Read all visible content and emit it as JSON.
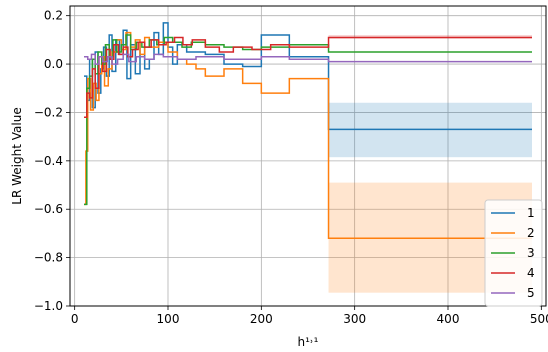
{
  "chart_data": {
    "type": "line",
    "title": "",
    "xlabel": "h¹˒¹",
    "ylabel": "LR Weight Value",
    "xlim": [
      -5,
      505
    ],
    "ylim": [
      -1.0,
      0.24
    ],
    "xticks": [
      0,
      100,
      200,
      300,
      400,
      500
    ],
    "xtick_labels": [
      "0",
      "100",
      "200",
      "300",
      "400",
      "500"
    ],
    "yticks": [
      -1.0,
      -0.8,
      -0.6,
      -0.4,
      -0.2,
      0.0,
      0.2
    ],
    "ytick_labels": [
      "−1.0",
      "−0.8",
      "−0.6",
      "−0.4",
      "−0.2",
      "0.0",
      "0.2"
    ],
    "grid": true,
    "legend_position": "lower-right",
    "series": [
      {
        "name": "1",
        "color": "#1f77b4",
        "x": [
          10,
          13,
          16,
          19,
          22,
          25,
          28,
          31,
          34,
          37,
          40,
          44,
          48,
          52,
          56,
          60,
          65,
          70,
          75,
          80,
          85,
          90,
          95,
          100,
          105,
          110,
          120,
          140,
          160,
          180,
          200,
          230,
          272,
          490
        ],
        "y": [
          -0.05,
          -0.15,
          0.02,
          -0.18,
          0.05,
          -0.12,
          -0.02,
          0.07,
          -0.05,
          0.12,
          -0.03,
          0.1,
          0.04,
          0.14,
          -0.06,
          0.08,
          -0.04,
          0.09,
          -0.02,
          0.02,
          0.13,
          0.04,
          0.17,
          0.07,
          0.0,
          0.08,
          0.05,
          0.04,
          0.0,
          -0.01,
          0.12,
          0.03,
          -0.27,
          -0.27
        ],
        "band": {
          "x_start": 272,
          "x_end": 490,
          "lower": -0.385,
          "upper": -0.16
        }
      },
      {
        "name": "2",
        "color": "#ff7f0e",
        "x": [
          10,
          12,
          14,
          17,
          20,
          23,
          26,
          29,
          32,
          36,
          40,
          45,
          50,
          55,
          60,
          65,
          70,
          75,
          80,
          90,
          100,
          110,
          120,
          130,
          140,
          160,
          180,
          200,
          230,
          272,
          490
        ],
        "y": [
          -0.58,
          -0.36,
          -0.06,
          -0.19,
          -0.08,
          -0.15,
          -0.04,
          0.03,
          -0.09,
          -0.02,
          0.05,
          0.1,
          0.06,
          0.13,
          0.07,
          0.1,
          0.04,
          0.11,
          0.07,
          0.09,
          0.05,
          0.02,
          0.0,
          -0.02,
          -0.05,
          -0.02,
          -0.08,
          -0.12,
          -0.06,
          -0.72,
          -0.72
        ],
        "band": {
          "x_start": 272,
          "x_end": 490,
          "lower": -0.945,
          "upper": -0.49
        }
      },
      {
        "name": "3",
        "color": "#2ca02c",
        "x": [
          10,
          13,
          16,
          19,
          22,
          25,
          29,
          33,
          37,
          41,
          45,
          50,
          55,
          60,
          66,
          72,
          80,
          88,
          96,
          105,
          115,
          125,
          140,
          160,
          180,
          200,
          230,
          272,
          490
        ],
        "y": [
          -0.58,
          -0.1,
          -0.05,
          0.02,
          -0.04,
          0.05,
          0.0,
          0.08,
          0.03,
          0.1,
          0.05,
          0.08,
          0.12,
          0.06,
          0.09,
          0.07,
          0.1,
          0.08,
          0.11,
          0.09,
          0.07,
          0.09,
          0.08,
          0.07,
          0.06,
          0.07,
          0.08,
          0.05,
          0.05
        ],
        "band": null
      },
      {
        "name": "4",
        "color": "#d62728",
        "x": [
          10,
          13,
          16,
          19,
          22,
          26,
          30,
          34,
          38,
          42,
          47,
          52,
          57,
          62,
          68,
          75,
          82,
          90,
          98,
          107,
          116,
          126,
          140,
          155,
          170,
          190,
          210,
          230,
          272,
          490
        ],
        "y": [
          -0.22,
          -0.12,
          -0.14,
          -0.02,
          -0.1,
          0.03,
          -0.03,
          0.06,
          0.02,
          0.08,
          0.04,
          0.07,
          0.03,
          0.06,
          0.09,
          0.07,
          0.1,
          0.08,
          0.09,
          0.11,
          0.08,
          0.1,
          0.07,
          0.05,
          0.07,
          0.06,
          0.08,
          0.07,
          0.11,
          0.11
        ],
        "band": {
          "x_start": 272,
          "x_end": 490,
          "lower": 0.105,
          "upper": 0.12
        }
      },
      {
        "name": "5",
        "color": "#9467bd",
        "x": [
          10,
          14,
          18,
          22,
          26,
          30,
          35,
          40,
          46,
          52,
          58,
          66,
          75,
          85,
          95,
          110,
          130,
          160,
          200,
          230,
          272,
          490
        ],
        "y": [
          0.03,
          0.02,
          0.04,
          0.0,
          0.03,
          0.01,
          0.03,
          0.0,
          0.02,
          0.04,
          0.01,
          0.03,
          0.02,
          0.04,
          0.03,
          0.02,
          0.03,
          0.02,
          0.03,
          0.02,
          0.01,
          0.01
        ],
        "band": null
      }
    ]
  }
}
